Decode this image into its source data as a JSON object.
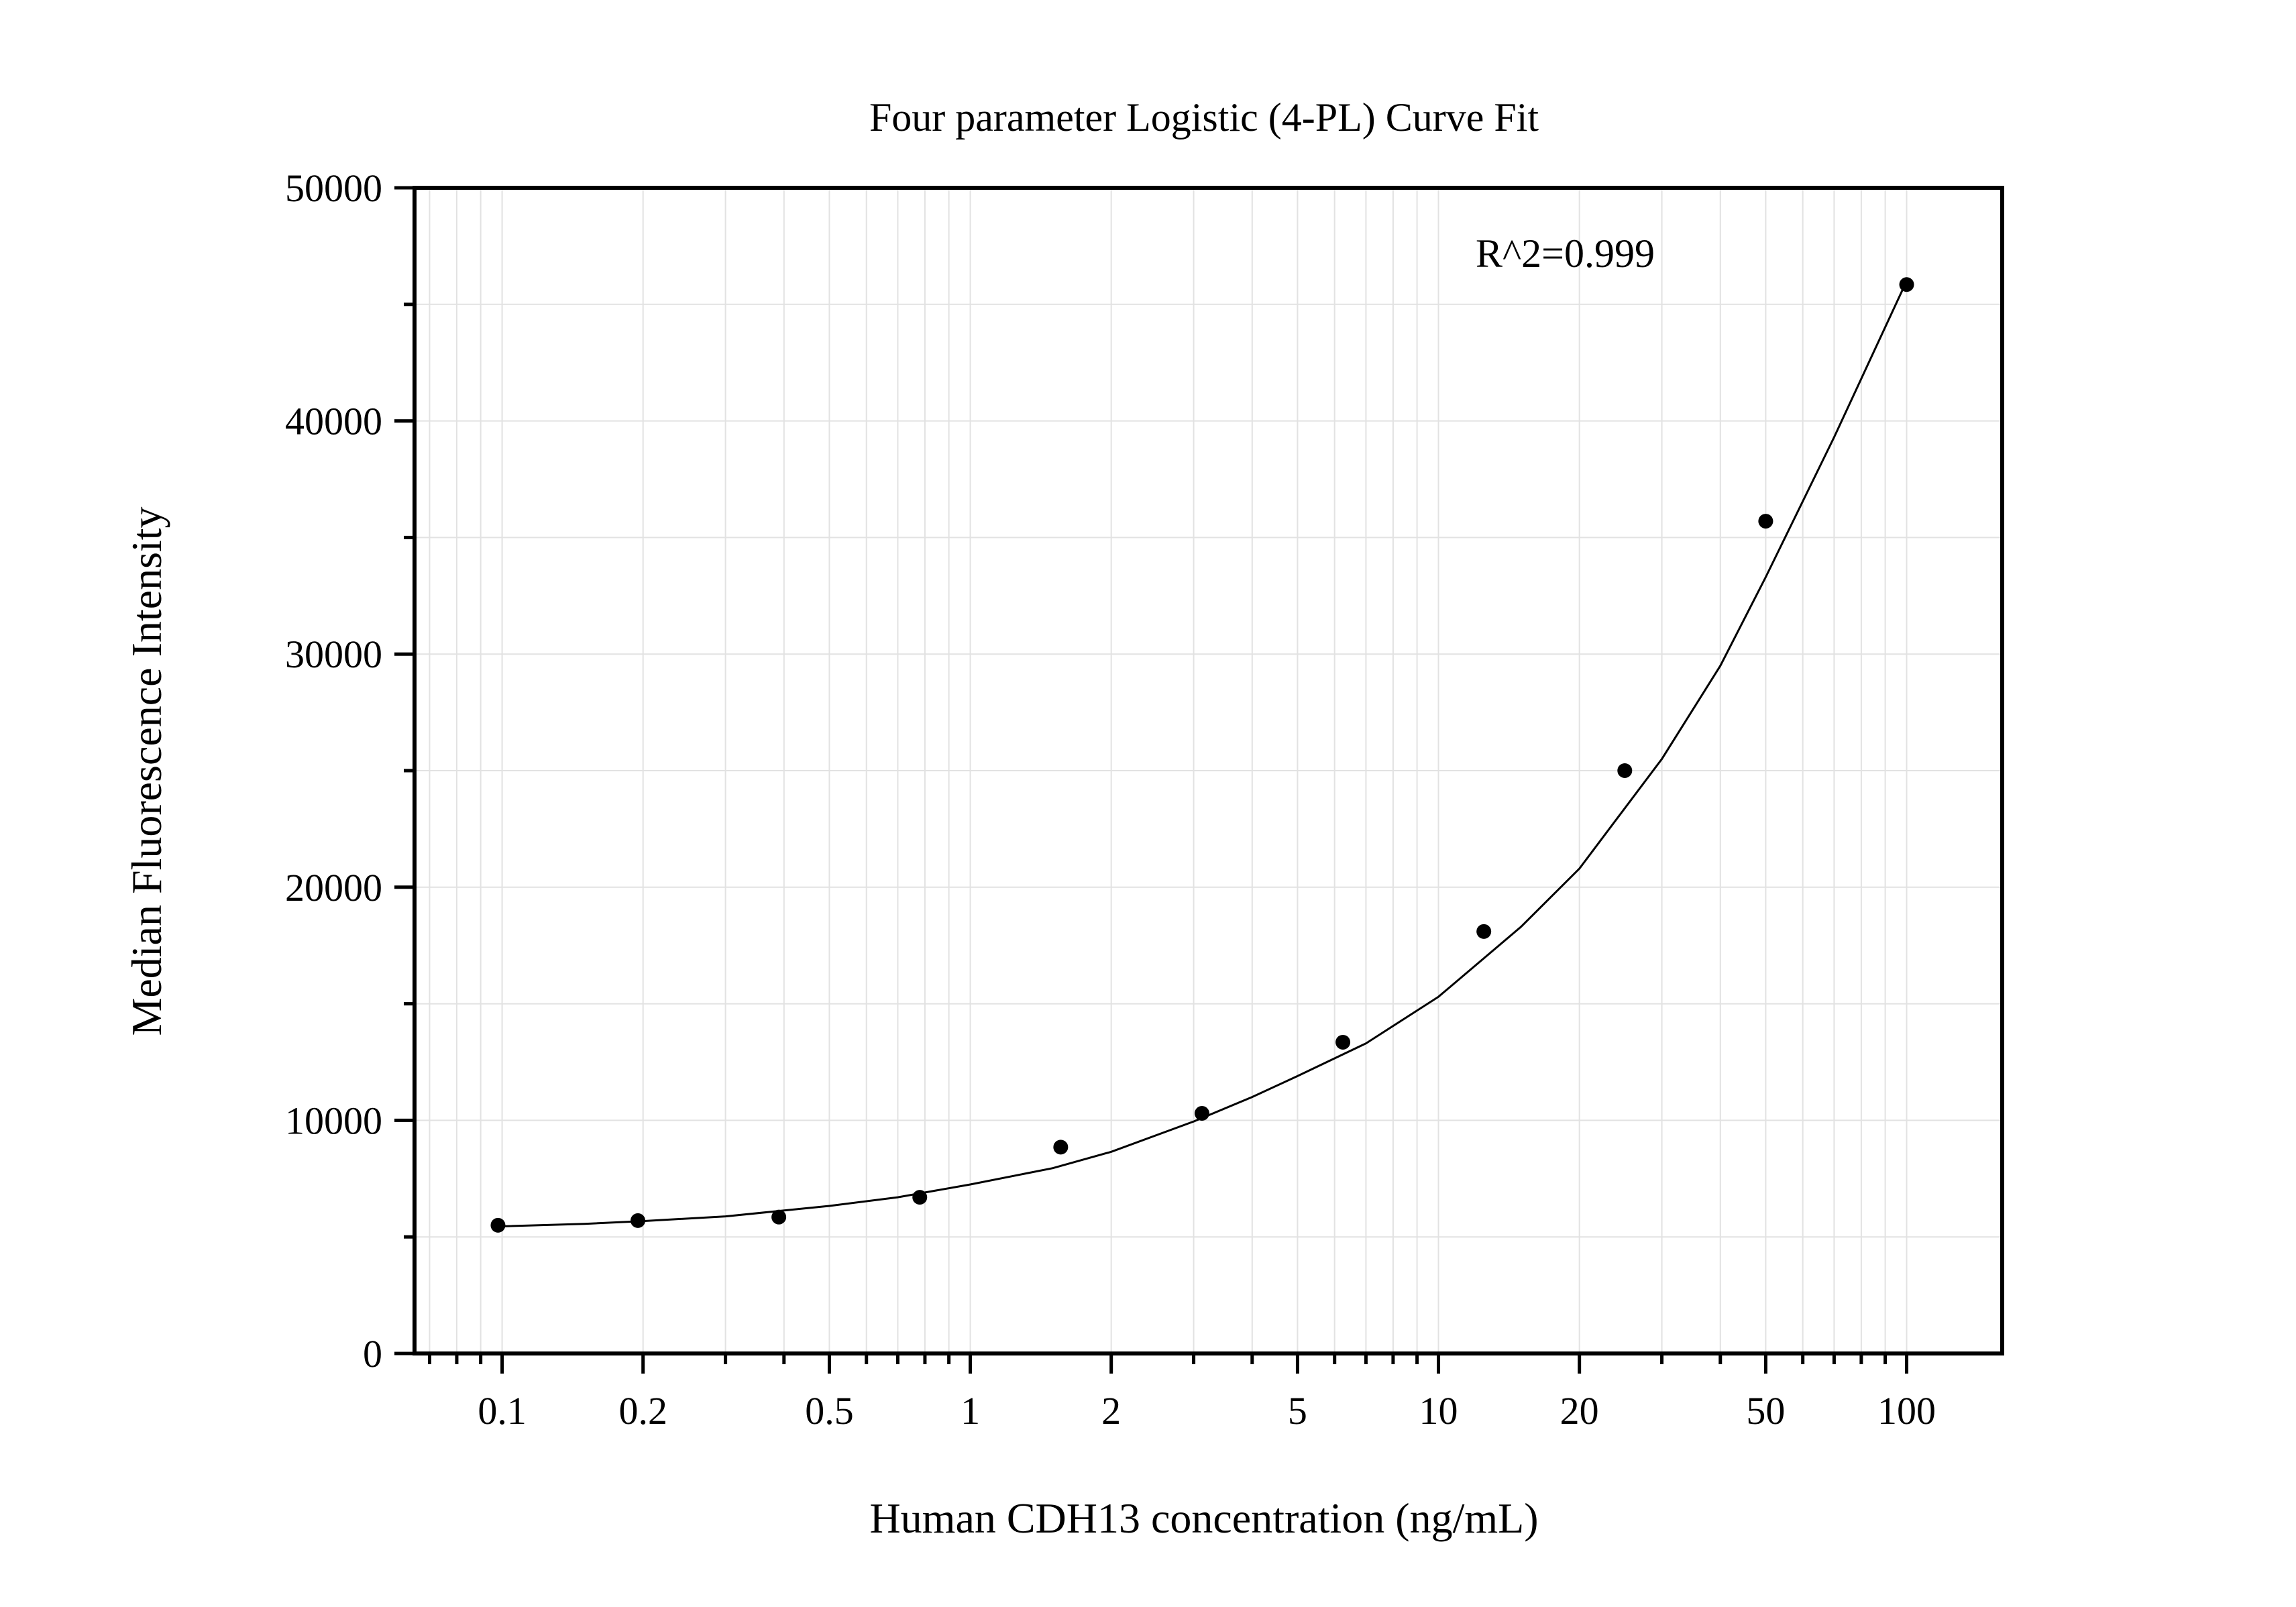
{
  "chart_data": {
    "type": "scatter",
    "title": "Four parameter Logistic (4-PL) Curve Fit",
    "xlabel": "Human CDH13 concentration (ng/mL)",
    "ylabel": "Median Fluorescence Intensity",
    "x_scale": "log",
    "y_scale": "linear",
    "xlim": [
      0.065,
      160
    ],
    "ylim": [
      0,
      50000
    ],
    "x_ticks": [
      0.1,
      0.2,
      0.5,
      1,
      2,
      5,
      10,
      20,
      50,
      100
    ],
    "x_tick_labels": [
      "0.1",
      "0.2",
      "0.5",
      "1",
      "2",
      "5",
      "10",
      "20",
      "50",
      "100"
    ],
    "y_ticks": [
      0,
      10000,
      20000,
      30000,
      40000,
      50000
    ],
    "y_tick_labels": [
      "0",
      "10000",
      "20000",
      "30000",
      "40000",
      "50000"
    ],
    "grid": true,
    "annotation": "R^2=0.999",
    "series": [
      {
        "type": "scatter",
        "x": [
          0.098,
          0.195,
          0.39,
          0.78,
          1.56,
          3.125,
          6.25,
          12.5,
          25,
          50,
          100
        ],
        "y": [
          5500,
          5700,
          5850,
          6700,
          8850,
          10300,
          13350,
          18100,
          25000,
          35700,
          45850
        ]
      },
      {
        "type": "line",
        "fit": "4PL",
        "x": [
          0.098,
          0.15,
          0.2,
          0.3,
          0.5,
          0.7,
          1,
          1.5,
          2,
          3,
          4,
          5,
          7,
          10,
          15,
          20,
          30,
          40,
          50,
          70,
          100
        ],
        "y": [
          5450,
          5560,
          5680,
          5880,
          6330,
          6700,
          7250,
          7950,
          8650,
          9950,
          11000,
          11900,
          13300,
          15300,
          18300,
          20800,
          25500,
          29500,
          33300,
          39300,
          46000
        ]
      }
    ],
    "colors": {
      "points": "#000000",
      "line": "#000000",
      "grid": "#e2e2e2",
      "frame": "#000000"
    }
  }
}
